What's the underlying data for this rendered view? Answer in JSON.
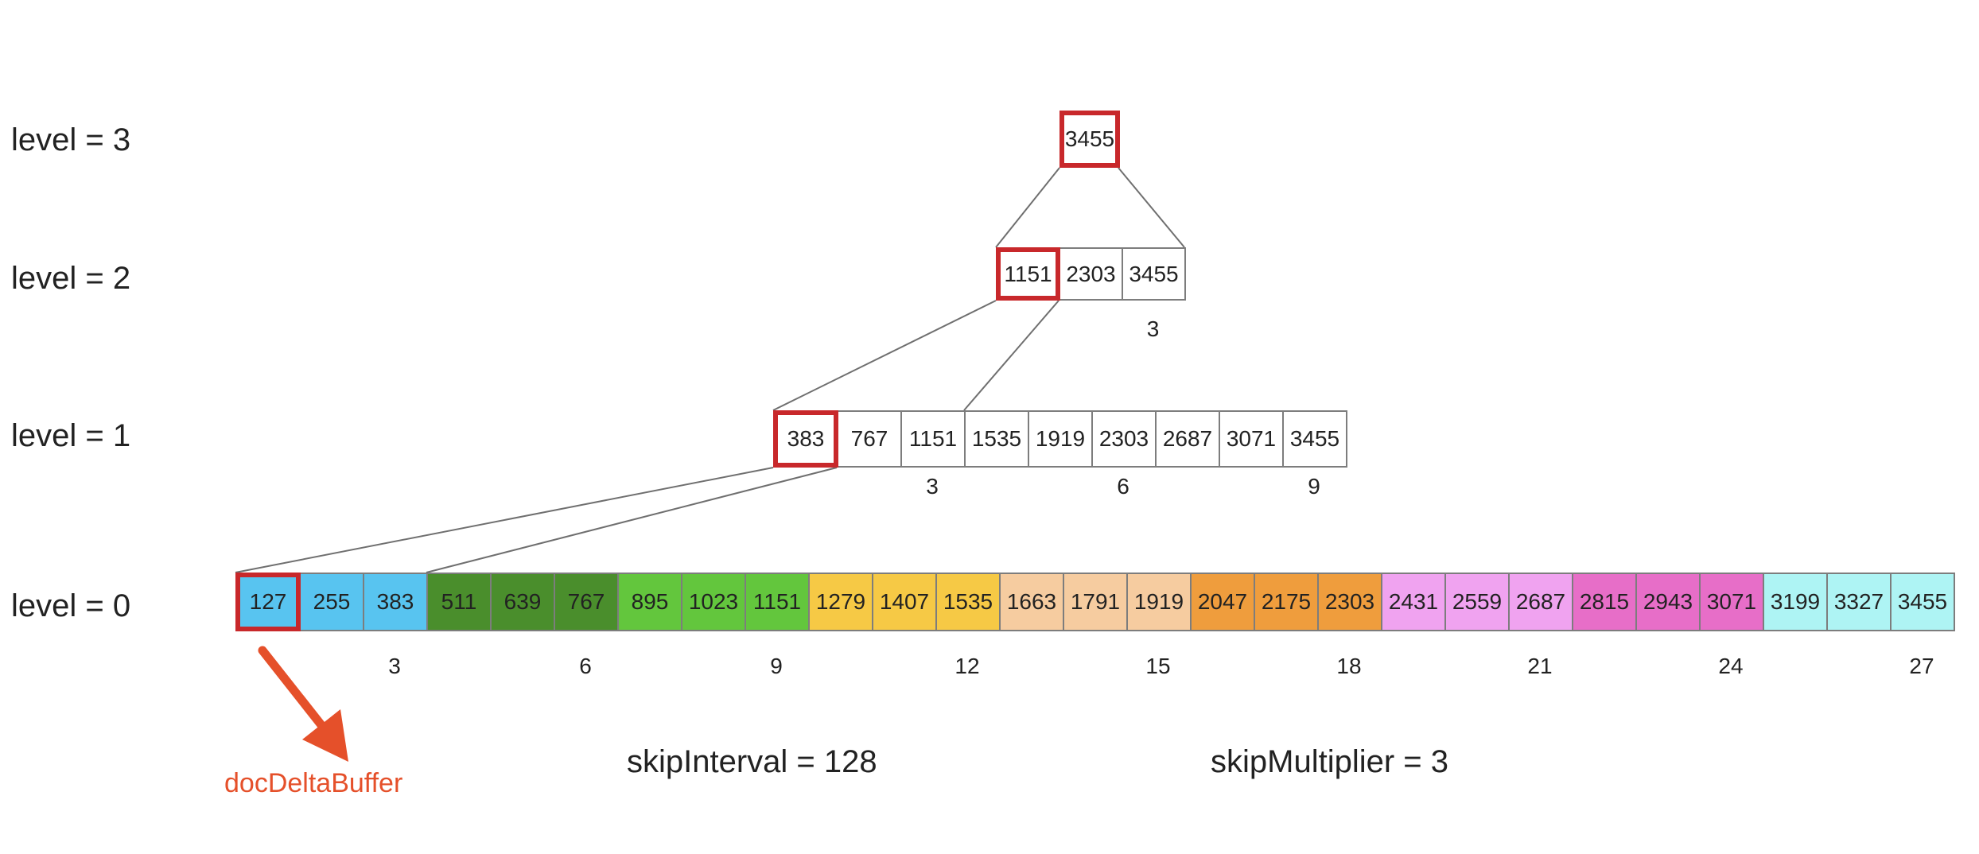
{
  "levels": [
    {
      "label": "level = 3",
      "cells": [
        {
          "value": "3455",
          "highlight": true
        }
      ],
      "index_labels": []
    },
    {
      "label": "level = 2",
      "cells": [
        {
          "value": "1151",
          "highlight": true
        },
        {
          "value": "2303"
        },
        {
          "value": "3455"
        }
      ],
      "index_labels": [
        "3"
      ]
    },
    {
      "label": "level = 1",
      "cells": [
        {
          "value": "383",
          "highlight": true
        },
        {
          "value": "767"
        },
        {
          "value": "1151"
        },
        {
          "value": "1535"
        },
        {
          "value": "1919"
        },
        {
          "value": "2303"
        },
        {
          "value": "2687"
        },
        {
          "value": "3071"
        },
        {
          "value": "3455"
        }
      ],
      "index_labels": [
        "3",
        "6",
        "9"
      ]
    },
    {
      "label": "level = 0",
      "cells": [
        {
          "value": "127",
          "color": "#58c4f0",
          "highlight": true
        },
        {
          "value": "255",
          "color": "#58c4f0"
        },
        {
          "value": "383",
          "color": "#58c4f0"
        },
        {
          "value": "511",
          "color": "#4a8e2c"
        },
        {
          "value": "639",
          "color": "#4a8e2c"
        },
        {
          "value": "767",
          "color": "#4a8e2c"
        },
        {
          "value": "895",
          "color": "#63c63d"
        },
        {
          "value": "1023",
          "color": "#63c63d"
        },
        {
          "value": "1151",
          "color": "#63c63d"
        },
        {
          "value": "1279",
          "color": "#f6c945"
        },
        {
          "value": "1407",
          "color": "#f6c945"
        },
        {
          "value": "1535",
          "color": "#f6c945"
        },
        {
          "value": "1663",
          "color": "#f6cca0"
        },
        {
          "value": "1791",
          "color": "#f6cca0"
        },
        {
          "value": "1919",
          "color": "#f6cca0"
        },
        {
          "value": "2047",
          "color": "#ef9d3d"
        },
        {
          "value": "2175",
          "color": "#ef9d3d"
        },
        {
          "value": "2303",
          "color": "#ef9d3d"
        },
        {
          "value": "2431",
          "color": "#f0a3f0"
        },
        {
          "value": "2559",
          "color": "#f0a3f0"
        },
        {
          "value": "2687",
          "color": "#f0a3f0"
        },
        {
          "value": "2815",
          "color": "#e76ec8"
        },
        {
          "value": "2943",
          "color": "#e76ec8"
        },
        {
          "value": "3071",
          "color": "#e76ec8"
        },
        {
          "value": "3199",
          "color": "#aef4f4"
        },
        {
          "value": "3327",
          "color": "#aef4f4"
        },
        {
          "value": "3455",
          "color": "#aef4f4"
        }
      ],
      "index_labels": [
        "3",
        "6",
        "9",
        "12",
        "15",
        "18",
        "21",
        "24",
        "27"
      ]
    }
  ],
  "params": {
    "skip_interval": "skipInterval = 128",
    "skip_multiplier": "skipMultiplier = 3"
  },
  "annotation": {
    "text": "docDeltaBuffer",
    "color": "#e5502a"
  },
  "colors": {
    "highlight_border": "#c8282b",
    "cell_border": "#7d7d7d",
    "connector": "#6f6f6f"
  }
}
